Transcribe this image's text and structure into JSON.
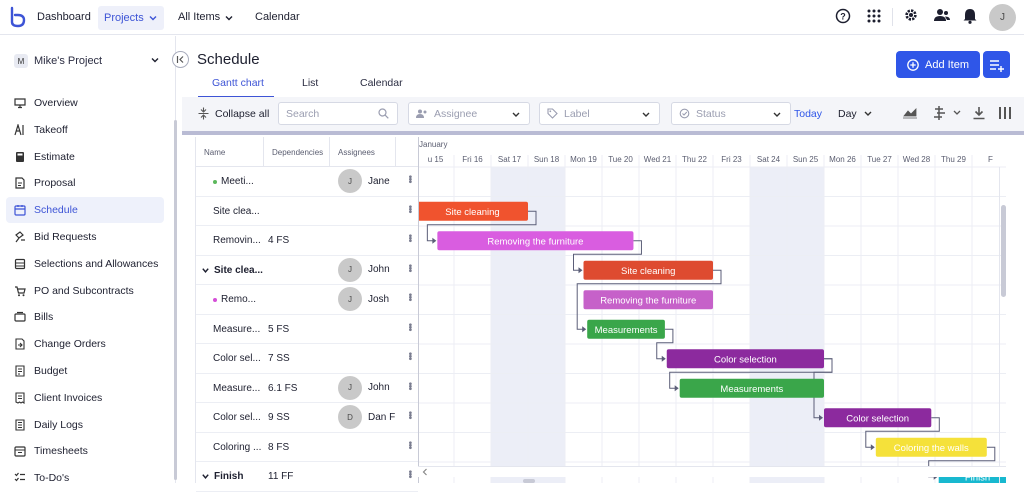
{
  "topnav": {
    "items": [
      {
        "label": "Dashboard"
      },
      {
        "label": "Projects"
      },
      {
        "label": "All Items"
      },
      {
        "label": "Calendar"
      }
    ],
    "avatar": "J"
  },
  "sidebar": {
    "project_badge": "M",
    "project_name": "Mike's Project",
    "items": [
      {
        "label": "Overview",
        "icon": "monitor-icon"
      },
      {
        "label": "Takeoff",
        "icon": "takeoff-icon"
      },
      {
        "label": "Estimate",
        "icon": "calculator-icon"
      },
      {
        "label": "Proposal",
        "icon": "proposal-icon"
      },
      {
        "label": "Schedule",
        "icon": "calendar-icon"
      },
      {
        "label": "Bid Requests",
        "icon": "bid-icon"
      },
      {
        "label": "Selections and Allowances",
        "icon": "selections-icon"
      },
      {
        "label": "PO and Subcontracts",
        "icon": "po-icon"
      },
      {
        "label": "Bills",
        "icon": "bills-icon"
      },
      {
        "label": "Change Orders",
        "icon": "change-icon"
      },
      {
        "label": "Budget",
        "icon": "budget-icon"
      },
      {
        "label": "Client Invoices",
        "icon": "invoice-icon"
      },
      {
        "label": "Daily Logs",
        "icon": "logs-icon"
      },
      {
        "label": "Timesheets",
        "icon": "timesheet-icon"
      },
      {
        "label": "To-Do's",
        "icon": "todo-icon"
      }
    ],
    "active": "Schedule"
  },
  "main": {
    "title": "Schedule",
    "tabs": [
      {
        "label": "Gantt chart"
      },
      {
        "label": "List"
      },
      {
        "label": "Calendar"
      }
    ],
    "add_item_label": "Add Item"
  },
  "toolbar": {
    "collapse_all": "Collapse all",
    "search_placeholder": "Search",
    "assignee_placeholder": "Assignee",
    "label_placeholder": "Label",
    "status_placeholder": "Status",
    "today_label": "Today",
    "zoom_label": "Day"
  },
  "grid": {
    "headers": {
      "name": "Name",
      "dependencies": "Dependencies",
      "assignees": "Assignees"
    },
    "rows": [
      {
        "name": "Meeti...",
        "dep": "",
        "assignee": "Jane",
        "initial": "J",
        "bold": false,
        "dot": "#5cb85c"
      },
      {
        "name": "Site clea...",
        "dep": "",
        "assignee": "",
        "initial": "",
        "bold": false,
        "dot": ""
      },
      {
        "name": "Removin...",
        "dep": "4 FS",
        "assignee": "",
        "initial": "",
        "bold": false,
        "dot": ""
      },
      {
        "name": "Site clea...",
        "dep": "",
        "assignee": "John",
        "initial": "J",
        "bold": true,
        "dot": "",
        "expand": true
      },
      {
        "name": "Remo...",
        "dep": "",
        "assignee": "Josh",
        "initial": "J",
        "bold": false,
        "dot": "#d54fd8"
      },
      {
        "name": "Measure...",
        "dep": "5 FS",
        "assignee": "",
        "initial": "",
        "bold": false,
        "dot": ""
      },
      {
        "name": "Color sel...",
        "dep": "7 SS",
        "assignee": "",
        "initial": "",
        "bold": false,
        "dot": ""
      },
      {
        "name": "Measure...",
        "dep": "6.1 FS",
        "assignee": "John",
        "initial": "J",
        "bold": false,
        "dot": ""
      },
      {
        "name": "Color sel...",
        "dep": "9 SS",
        "assignee": "Dan F",
        "initial": "D",
        "bold": false,
        "dot": ""
      },
      {
        "name": "Coloring ...",
        "dep": "8 FS",
        "assignee": "",
        "initial": "",
        "bold": false,
        "dot": ""
      },
      {
        "name": "Finish",
        "dep": "11 FF",
        "assignee": "",
        "initial": "",
        "bold": true,
        "dot": "",
        "expand": true
      }
    ]
  },
  "gantt": {
    "month_label": "January",
    "days": [
      "u 15",
      "Fri 16",
      "Sat 17",
      "Sun 18",
      "Mon 19",
      "Tue 20",
      "Wed 21",
      "Thu 22",
      "Fri 23",
      "Sat 24",
      "Sun 25",
      "Mon 26",
      "Tue 27",
      "Wed 28",
      "Thu 29",
      "F"
    ],
    "bars": [
      {
        "label": "Site cleaning",
        "row": 1,
        "start": 0,
        "end": 3.0,
        "color": "#f0532e"
      },
      {
        "label": "Removing the furniture",
        "row": 2,
        "start": 0.55,
        "end": 5.85,
        "color": "#d95de0"
      },
      {
        "label": "Site cleaning",
        "row": 3,
        "start": 4.5,
        "end": 8.0,
        "color": "#de4b30"
      },
      {
        "label": "Removing the furniture",
        "row": 4,
        "start": 4.5,
        "end": 8.0,
        "color": "#c661c9"
      },
      {
        "label": "Measurements",
        "row": 5,
        "start": 4.6,
        "end": 6.7,
        "color": "#3aa64a"
      },
      {
        "label": "Color selection",
        "row": 6,
        "start": 6.75,
        "end": 11.0,
        "color": "#8c2a9e"
      },
      {
        "label": "Measurements",
        "row": 7,
        "start": 7.1,
        "end": 11.0,
        "color": "#3aa64a"
      },
      {
        "label": "Color selection",
        "row": 8,
        "start": 11.0,
        "end": 13.9,
        "color": "#8c2a9e"
      },
      {
        "label": "Coloring the walls",
        "row": 9,
        "start": 12.4,
        "end": 15.4,
        "color": "#f5e13a"
      },
      {
        "label": "Finish",
        "row": 10,
        "start": 14.1,
        "end": 16.2,
        "color": "#18b8cf"
      }
    ]
  }
}
